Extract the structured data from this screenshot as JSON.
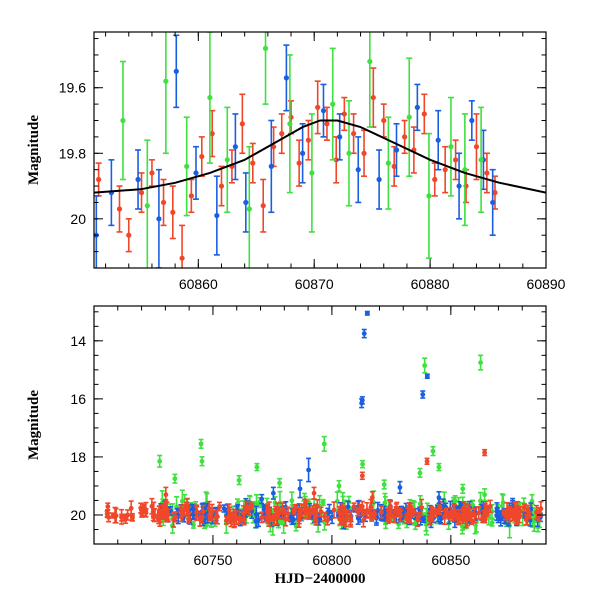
{
  "colors": {
    "blue": "#1a5fe0",
    "red": "#f0472a",
    "green": "#3fe03f",
    "model": "#000000"
  },
  "chart_data": [
    {
      "type": "scatter",
      "title": "",
      "xlabel": "",
      "ylabel": "Magnitude",
      "xlim": [
        60851,
        60890
      ],
      "ylim": [
        20.15,
        19.43
      ],
      "y_inverted": true,
      "x_ticks": [
        60860,
        60870,
        60880,
        60890
      ],
      "x_tick_labels": [
        "60860",
        "60870",
        "60880",
        "60890"
      ],
      "y_ticks": [
        19.6,
        19.8,
        20.0
      ],
      "y_tick_labels": [
        "19.6",
        "19.8",
        "20"
      ],
      "grid": false,
      "model_curve": {
        "shape": "lorentzian-like peak",
        "x": [
          60851,
          60855,
          60858,
          60861,
          60864,
          60867,
          60869,
          60870.5,
          60871,
          60872,
          60874,
          60877,
          60880,
          60883,
          60886,
          60890
        ],
        "y": [
          19.92,
          19.91,
          19.89,
          19.86,
          19.82,
          19.76,
          19.72,
          19.7,
          19.7,
          19.7,
          19.72,
          19.77,
          19.82,
          19.86,
          19.89,
          19.92
        ]
      },
      "series": [
        {
          "color_key": "red",
          "x": [
            60851.4,
            60853.2,
            60854.0,
            60855.1,
            60856.0,
            60857.0,
            60857.8,
            60858.6,
            60859.4,
            60860.3,
            60861.2,
            60862.0,
            60862.9,
            60863.8,
            60864.7,
            60865.6,
            60866.5,
            60867.2,
            60868.0,
            60868.7,
            60869.5,
            60870.3,
            60871.1,
            60871.9,
            60872.6,
            60873.4,
            60874.3,
            60875.1,
            60876.0,
            60876.9,
            60877.8,
            60878.6,
            60879.5,
            60880.4,
            60881.3,
            60882.2,
            60883.1,
            60884.0,
            60884.9,
            60885.6
          ],
          "y": [
            19.88,
            19.97,
            20.05,
            19.92,
            19.86,
            19.95,
            19.98,
            20.12,
            19.93,
            19.81,
            19.74,
            19.9,
            19.84,
            19.71,
            19.83,
            19.96,
            19.78,
            19.74,
            19.69,
            19.83,
            19.76,
            19.66,
            19.71,
            19.82,
            19.68,
            19.74,
            19.8,
            19.63,
            19.7,
            19.84,
            19.75,
            19.79,
            19.68,
            19.88,
            19.85,
            19.82,
            19.9,
            19.78,
            19.86,
            19.92
          ],
          "err": [
            0.05,
            0.07,
            0.05,
            0.06,
            0.04,
            0.07,
            0.08,
            0.1,
            0.05,
            0.06,
            0.07,
            0.06,
            0.05,
            0.09,
            0.06,
            0.08,
            0.06,
            0.06,
            0.05,
            0.07,
            0.06,
            0.08,
            0.05,
            0.07,
            0.05,
            0.06,
            0.07,
            0.09,
            0.05,
            0.06,
            0.05,
            0.07,
            0.06,
            0.05,
            0.07,
            0.06,
            0.05,
            0.1,
            0.06,
            0.05
          ]
        },
        {
          "color_key": "blue",
          "x": [
            60851.2,
            60852.5,
            60854.8,
            60856.6,
            60858.1,
            60859.8,
            60861.6,
            60863.2,
            60864.1,
            60866.3,
            60867.6,
            60869.0,
            60870.8,
            60872.2,
            60873.8,
            60875.6,
            60877.1,
            60878.9,
            60880.7,
            60882.5,
            60883.6,
            60884.6,
            60885.4
          ],
          "y": [
            20.05,
            19.92,
            19.88,
            20.0,
            19.55,
            19.86,
            19.99,
            19.78,
            19.95,
            19.84,
            19.57,
            19.8,
            19.67,
            19.75,
            19.85,
            19.88,
            19.79,
            19.66,
            19.76,
            19.9,
            19.7,
            19.82,
            19.95
          ],
          "err": [
            0.12,
            0.1,
            0.09,
            0.15,
            0.11,
            0.08,
            0.12,
            0.1,
            0.09,
            0.14,
            0.1,
            0.09,
            0.08,
            0.07,
            0.1,
            0.09,
            0.08,
            0.07,
            0.09,
            0.1,
            0.06,
            0.09,
            0.1
          ]
        },
        {
          "color_key": "green",
          "x": [
            60853.5,
            60855.6,
            60857.2,
            60859.0,
            60861.0,
            60862.5,
            60864.4,
            60865.8,
            60867.9,
            60869.8,
            60871.6,
            60873.0,
            60874.8,
            60876.4,
            60878.2,
            60879.9,
            60881.8,
            60883.0,
            60884.4
          ],
          "y": [
            19.7,
            19.96,
            19.58,
            19.84,
            19.63,
            19.82,
            19.97,
            19.48,
            19.71,
            19.86,
            19.65,
            19.8,
            19.52,
            19.83,
            19.69,
            19.93,
            19.78,
            19.85,
            19.82
          ],
          "err": [
            0.18,
            0.2,
            0.22,
            0.15,
            0.2,
            0.16,
            0.19,
            0.17,
            0.21,
            0.18,
            0.17,
            0.16,
            0.2,
            0.14,
            0.18,
            0.19,
            0.15,
            0.17,
            0.16
          ]
        }
      ]
    },
    {
      "type": "scatter",
      "title": "",
      "xlabel": "HJD−2400000",
      "ylabel": "Magnitude",
      "xlim": [
        60700,
        60890
      ],
      "ylim": [
        21.0,
        12.8
      ],
      "y_inverted": true,
      "x_ticks": [
        60750,
        60800,
        60850
      ],
      "x_tick_labels": [
        "60750",
        "60800",
        "60850"
      ],
      "y_ticks": [
        14,
        16,
        18,
        20
      ],
      "y_tick_labels": [
        "14",
        "16",
        "18",
        "20"
      ],
      "grid": false,
      "baseline_band": {
        "red_x_range": [
          60705,
          60888
        ],
        "blue_x_range": [
          60728,
          60888
        ],
        "green_x_range": [
          60728,
          60888
        ],
        "mean_mag": 19.95
      },
      "series": [
        {
          "color_key": "blue",
          "x": [
            60812.5,
            60812.8,
            60813.6,
            60814.9,
            60838.2,
            60840.1,
            60790.2,
            60786.6,
            60775.4,
            60828.6,
            60845.0,
            60770.5
          ],
          "y": [
            16.15,
            16.05,
            13.75,
            13.05,
            15.85,
            15.22,
            18.45,
            19.1,
            19.25,
            19.05,
            19.4,
            19.45
          ],
          "err": [
            0.15,
            0.12,
            0.14,
            0.06,
            0.12,
            0.07,
            0.4,
            0.3,
            0.2,
            0.2,
            0.2,
            0.15
          ]
        },
        {
          "color_key": "green",
          "x": [
            60727.6,
            60734.0,
            60745.0,
            60745.4,
            60768.5,
            60796.8,
            60812.9,
            60837.0,
            60839.0,
            60842.5,
            60845.0,
            60862.5,
            60864.2,
            60761.0,
            60778.0,
            60803.0,
            60822.0,
            60855.0
          ],
          "y": [
            18.15,
            18.75,
            17.55,
            18.15,
            18.35,
            17.55,
            18.25,
            18.55,
            14.85,
            17.8,
            18.35,
            14.75,
            19.3,
            18.8,
            18.9,
            19.0,
            18.95,
            19.1
          ],
          "err": [
            0.2,
            0.15,
            0.15,
            0.15,
            0.12,
            0.25,
            0.12,
            0.15,
            0.25,
            0.15,
            0.12,
            0.25,
            0.2,
            0.15,
            0.15,
            0.18,
            0.15,
            0.15
          ]
        },
        {
          "color_key": "red",
          "x": [
            60812.8,
            60840.0,
            60864.2,
            60730.2,
            60792.5,
            60817.0
          ],
          "y": [
            18.65,
            18.15,
            17.85,
            19.3,
            19.25,
            19.4
          ],
          "err": [
            0.12,
            0.1,
            0.1,
            0.25,
            0.2,
            0.2
          ]
        }
      ]
    }
  ]
}
